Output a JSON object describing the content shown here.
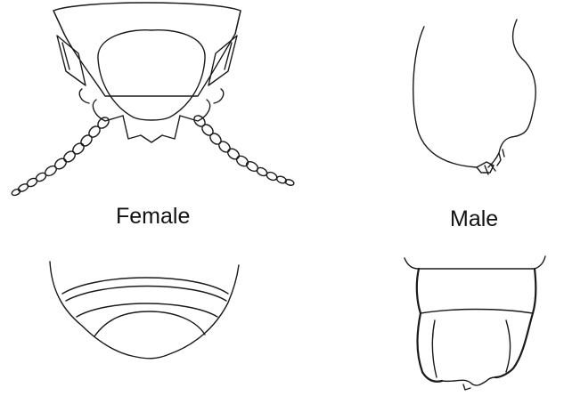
{
  "labels": {
    "female": "Female",
    "male": "Male"
  },
  "colors": {
    "background": "#ffffff",
    "ink": "#1a1a1a"
  }
}
